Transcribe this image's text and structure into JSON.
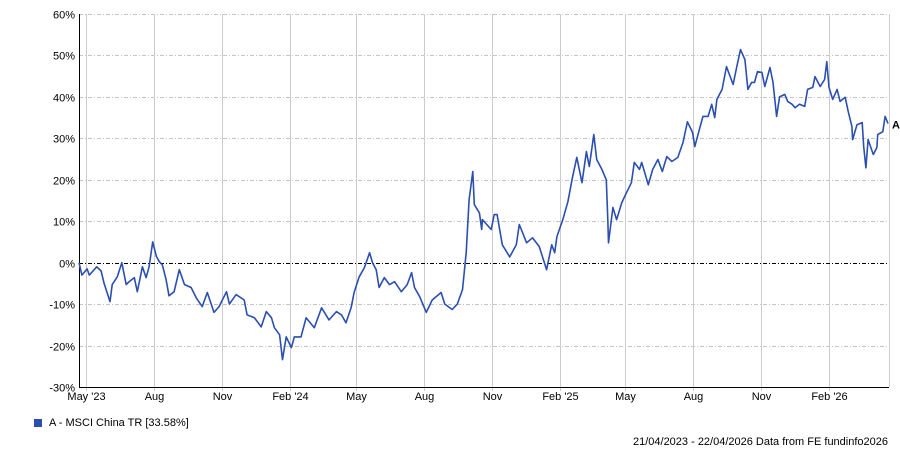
{
  "chart_data": {
    "type": "line",
    "title": "",
    "xlabel": "",
    "ylabel": "",
    "ylim": [
      -30,
      60
    ],
    "xlim": [
      "2023-04-21",
      "2026-04-22"
    ],
    "y_ticks": [
      60,
      50,
      40,
      30,
      20,
      10,
      0,
      -10,
      -20,
      -30
    ],
    "y_tick_format": "%",
    "x_ticks": [
      {
        "label": "May '23",
        "date": "2023-05-01"
      },
      {
        "label": "Aug",
        "date": "2023-08-01"
      },
      {
        "label": "Nov",
        "date": "2023-11-01"
      },
      {
        "label": "Feb '24",
        "date": "2024-02-01"
      },
      {
        "label": "May",
        "date": "2024-05-01"
      },
      {
        "label": "Aug",
        "date": "2024-08-01"
      },
      {
        "label": "Nov",
        "date": "2024-11-01"
      },
      {
        "label": "Feb '25",
        "date": "2025-02-01"
      },
      {
        "label": "May",
        "date": "2025-05-01"
      },
      {
        "label": "Aug",
        "date": "2025-08-01"
      },
      {
        "label": "Nov",
        "date": "2025-11-01"
      },
      {
        "label": "Feb '26",
        "date": "2026-02-01"
      }
    ],
    "grid": true,
    "zero_line": true,
    "legend_position": "bottom-left",
    "series": [
      {
        "name": "A - MSCI China TR [33.58%]",
        "end_label": "A",
        "color": "#2a4fb0",
        "points": [
          [
            "2023-04-21",
            0
          ],
          [
            "2023-04-25",
            -3
          ],
          [
            "2023-05-02",
            -1.5
          ],
          [
            "2023-05-05",
            -3
          ],
          [
            "2023-05-15",
            -1
          ],
          [
            "2023-05-21",
            -2
          ],
          [
            "2023-05-25",
            -5
          ],
          [
            "2023-06-02",
            -9.4
          ],
          [
            "2023-06-05",
            -5.3
          ],
          [
            "2023-06-12",
            -3.4
          ],
          [
            "2023-06-18",
            0
          ],
          [
            "2023-06-24",
            -5.3
          ],
          [
            "2023-06-28",
            -4.6
          ],
          [
            "2023-07-05",
            -3.6
          ],
          [
            "2023-07-09",
            -7
          ],
          [
            "2023-07-16",
            -1
          ],
          [
            "2023-07-21",
            -3.6
          ],
          [
            "2023-07-25",
            -1
          ],
          [
            "2023-07-30",
            5
          ],
          [
            "2023-08-04",
            1.5
          ],
          [
            "2023-08-08",
            0.2
          ],
          [
            "2023-08-12",
            -0.5
          ],
          [
            "2023-08-17",
            -4
          ],
          [
            "2023-08-21",
            -8
          ],
          [
            "2023-08-28",
            -7
          ],
          [
            "2023-09-04",
            -1.7
          ],
          [
            "2023-09-11",
            -5.3
          ],
          [
            "2023-09-20",
            -6
          ],
          [
            "2023-09-27",
            -8.5
          ],
          [
            "2023-10-05",
            -10.6
          ],
          [
            "2023-10-12",
            -7.2
          ],
          [
            "2023-10-21",
            -12
          ],
          [
            "2023-10-28",
            -10.6
          ],
          [
            "2023-11-07",
            -7
          ],
          [
            "2023-11-11",
            -10
          ],
          [
            "2023-11-20",
            -7.7
          ],
          [
            "2023-12-01",
            -9
          ],
          [
            "2023-12-05",
            -12.6
          ],
          [
            "2023-12-15",
            -13.3
          ],
          [
            "2023-12-24",
            -15.5
          ],
          [
            "2023-12-31",
            -11.8
          ],
          [
            "2024-01-07",
            -13.3
          ],
          [
            "2024-01-11",
            -15.7
          ],
          [
            "2024-01-18",
            -17.4
          ],
          [
            "2024-01-22",
            -23.4
          ],
          [
            "2024-01-27",
            -17.9
          ],
          [
            "2024-02-03",
            -20.5
          ],
          [
            "2024-02-07",
            -17.9
          ],
          [
            "2024-02-16",
            -17.9
          ],
          [
            "2024-02-23",
            -13.3
          ],
          [
            "2024-03-05",
            -15.7
          ],
          [
            "2024-03-15",
            -10.9
          ],
          [
            "2024-03-25",
            -13.8
          ],
          [
            "2024-04-04",
            -11.8
          ],
          [
            "2024-04-11",
            -12.6
          ],
          [
            "2024-04-17",
            -14.5
          ],
          [
            "2024-04-24",
            -10.9
          ],
          [
            "2024-04-28",
            -7.2
          ],
          [
            "2024-05-05",
            -3.4
          ],
          [
            "2024-05-12",
            -1.2
          ],
          [
            "2024-05-19",
            2.4
          ],
          [
            "2024-05-23",
            0
          ],
          [
            "2024-05-28",
            -1.7
          ],
          [
            "2024-06-01",
            -6
          ],
          [
            "2024-06-08",
            -3.6
          ],
          [
            "2024-06-15",
            -5.3
          ],
          [
            "2024-06-22",
            -4.6
          ],
          [
            "2024-07-01",
            -7
          ],
          [
            "2024-07-09",
            -5.3
          ],
          [
            "2024-07-15",
            -2.4
          ],
          [
            "2024-07-19",
            -6
          ],
          [
            "2024-07-26",
            -8.2
          ],
          [
            "2024-08-04",
            -12
          ],
          [
            "2024-08-12",
            -9
          ],
          [
            "2024-08-24",
            -7.2
          ],
          [
            "2024-08-29",
            -10
          ],
          [
            "2024-09-08",
            -11.3
          ],
          [
            "2024-09-15",
            -10
          ],
          [
            "2024-09-22",
            -6.5
          ],
          [
            "2024-09-27",
            2.4
          ],
          [
            "2024-10-01",
            15.2
          ],
          [
            "2024-10-06",
            22
          ],
          [
            "2024-10-08",
            14
          ],
          [
            "2024-10-15",
            12
          ],
          [
            "2024-10-18",
            8
          ],
          [
            "2024-10-19",
            10.4
          ],
          [
            "2024-10-31",
            8
          ],
          [
            "2024-11-04",
            11.6
          ],
          [
            "2024-11-08",
            11.6
          ],
          [
            "2024-11-15",
            4.3
          ],
          [
            "2024-11-25",
            1.4
          ],
          [
            "2024-12-04",
            4.3
          ],
          [
            "2024-12-08",
            9.2
          ],
          [
            "2024-12-18",
            4.8
          ],
          [
            "2024-12-26",
            6
          ],
          [
            "2025-01-04",
            3.9
          ],
          [
            "2025-01-14",
            -1.7
          ],
          [
            "2025-01-21",
            4.3
          ],
          [
            "2025-01-25",
            2.4
          ],
          [
            "2025-01-28",
            6.3
          ],
          [
            "2025-02-05",
            10.4
          ],
          [
            "2025-02-12",
            14.7
          ],
          [
            "2025-02-18",
            20.5
          ],
          [
            "2025-02-24",
            25.4
          ],
          [
            "2025-03-03",
            19.3
          ],
          [
            "2025-03-09",
            26.8
          ],
          [
            "2025-03-13",
            23.2
          ],
          [
            "2025-03-19",
            30.9
          ],
          [
            "2025-03-23",
            24.9
          ],
          [
            "2025-03-30",
            22.5
          ],
          [
            "2025-04-05",
            20
          ],
          [
            "2025-04-07",
            10.4
          ],
          [
            "2025-04-08",
            4.8
          ],
          [
            "2025-04-14",
            13.3
          ],
          [
            "2025-04-19",
            10.4
          ],
          [
            "2025-04-26",
            14.5
          ],
          [
            "2025-05-03",
            17.1
          ],
          [
            "2025-05-09",
            19.3
          ],
          [
            "2025-05-13",
            24.2
          ],
          [
            "2025-05-20",
            22.5
          ],
          [
            "2025-05-23",
            24.2
          ],
          [
            "2025-06-01",
            18.8
          ],
          [
            "2025-06-07",
            22.5
          ],
          [
            "2025-06-14",
            24.9
          ],
          [
            "2025-06-20",
            22
          ],
          [
            "2025-06-26",
            25.6
          ],
          [
            "2025-07-03",
            24.4
          ],
          [
            "2025-07-11",
            25.4
          ],
          [
            "2025-07-18",
            29
          ],
          [
            "2025-07-24",
            34
          ],
          [
            "2025-07-31",
            31.4
          ],
          [
            "2025-08-03",
            28
          ],
          [
            "2025-08-10",
            32.6
          ],
          [
            "2025-08-14",
            35.3
          ],
          [
            "2025-08-21",
            35.3
          ],
          [
            "2025-08-26",
            38.2
          ],
          [
            "2025-08-30",
            35
          ],
          [
            "2025-09-02",
            39.4
          ],
          [
            "2025-09-09",
            41.8
          ],
          [
            "2025-09-15",
            47.3
          ],
          [
            "2025-09-19",
            45.4
          ],
          [
            "2025-09-24",
            43
          ],
          [
            "2025-09-29",
            47.3
          ],
          [
            "2025-10-04",
            51.4
          ],
          [
            "2025-10-10",
            49
          ],
          [
            "2025-10-14",
            41.8
          ],
          [
            "2025-10-19",
            43.5
          ],
          [
            "2025-10-23",
            43.5
          ],
          [
            "2025-10-27",
            46.1
          ],
          [
            "2025-11-02",
            45.9
          ],
          [
            "2025-11-06",
            42.5
          ],
          [
            "2025-11-13",
            47.1
          ],
          [
            "2025-11-17",
            43.5
          ],
          [
            "2025-11-22",
            35.3
          ],
          [
            "2025-11-26",
            40
          ],
          [
            "2025-12-03",
            40.6
          ],
          [
            "2025-12-07",
            38.9
          ],
          [
            "2025-12-13",
            38.2
          ],
          [
            "2025-12-17",
            37.4
          ],
          [
            "2025-12-23",
            38.2
          ],
          [
            "2025-12-30",
            37.7
          ],
          [
            "2026-01-03",
            41.8
          ],
          [
            "2026-01-10",
            42.3
          ],
          [
            "2026-01-13",
            44.9
          ],
          [
            "2026-01-20",
            42.5
          ],
          [
            "2026-01-26",
            44.2
          ],
          [
            "2026-01-29",
            48.5
          ],
          [
            "2026-02-01",
            42.3
          ],
          [
            "2026-02-06",
            39.4
          ],
          [
            "2026-02-12",
            41.8
          ],
          [
            "2026-02-16",
            38.9
          ],
          [
            "2026-02-23",
            39.9
          ],
          [
            "2026-02-27",
            36.5
          ],
          [
            "2026-03-04",
            32.9
          ],
          [
            "2026-03-05",
            29.7
          ],
          [
            "2026-03-11",
            33.3
          ],
          [
            "2026-03-18",
            33.8
          ],
          [
            "2026-03-20",
            28
          ],
          [
            "2026-03-23",
            22.9
          ],
          [
            "2026-03-26",
            29.7
          ],
          [
            "2026-04-02",
            26.1
          ],
          [
            "2026-04-07",
            27.8
          ],
          [
            "2026-04-08",
            30.9
          ],
          [
            "2026-04-15",
            31.6
          ],
          [
            "2026-04-18",
            35.3
          ],
          [
            "2026-04-22",
            33.58
          ]
        ]
      }
    ]
  },
  "legend": {
    "label": "A - MSCI China TR [33.58%]"
  },
  "footer": {
    "text": "21/04/2023 - 22/04/2026 Data from FE fundinfo2026"
  }
}
